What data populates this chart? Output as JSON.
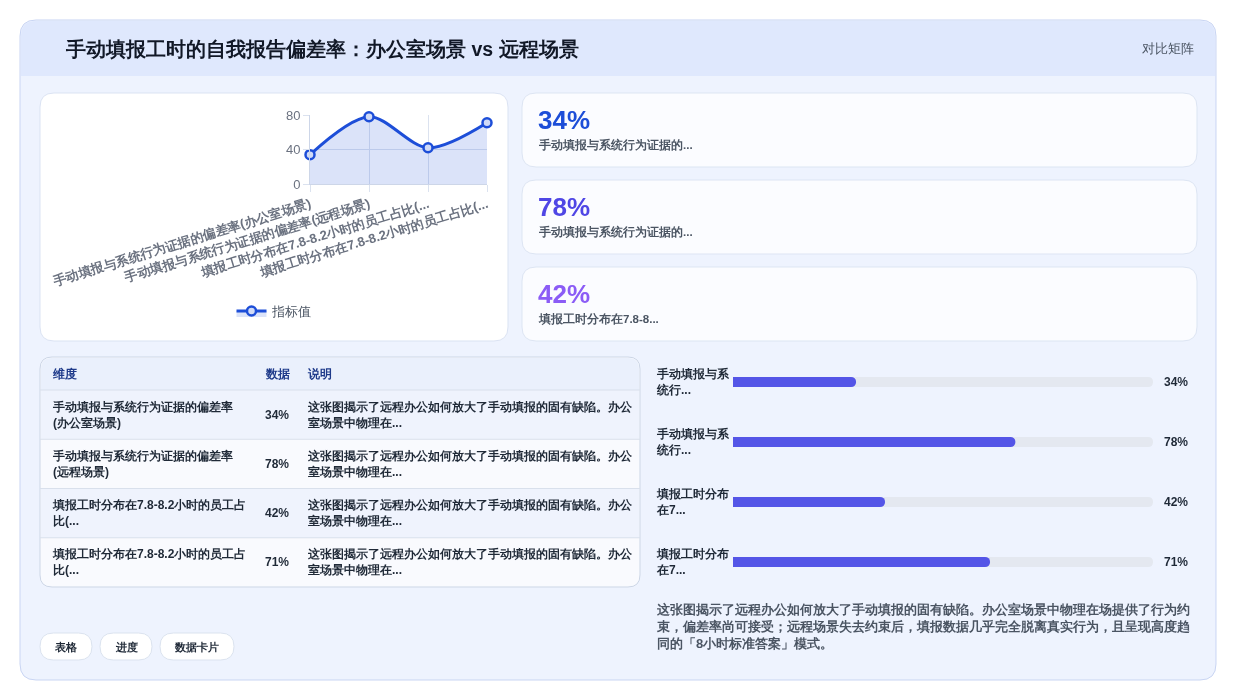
{
  "chart_data": [
    {
      "type": "other",
      "title": "手动填报工时的自我报告偏差率：办公室场景 vs 远程场景",
      "subtitle": "对比矩阵"
    },
    {
      "type": "area",
      "categories": [
        "手动填报与系统行为证据的偏差率(办公室场景)",
        "手动填报与系统行为证据的偏差率(远程场景)",
        "填报工时分布在7.8-8.2小时的员工占比(...",
        "填报工时分布在7.8-8.2小时的员工占比(..."
      ],
      "series": [
        {
          "name": "指标值",
          "color": "#1d4ed8",
          "values": [
            34,
            78,
            42,
            71
          ]
        }
      ],
      "ylim": [
        0,
        80
      ],
      "yticks": [
        0,
        40,
        80
      ],
      "grid": true,
      "legend": "bottom",
      "marker": "circle"
    },
    {
      "type": "other",
      "categories": [
        "手动填报与系统行为证据的...",
        "手动填报与系统行为证据的...",
        "填报工时分布在7.8-8..."
      ],
      "value_labels": [
        "34%",
        "78%",
        "42%"
      ]
    },
    {
      "type": "other",
      "ylabel": "维度",
      "categories": [
        "数据",
        "说明"
      ],
      "y_categories": [
        "手动填报与系统行为证据的偏差率(办公室场景)",
        "手动填报与系统行为证据的偏差率(远程场景)",
        "填报工时分布在7.8-8.2小时的员工占比(...",
        "填报工时分布在7.8-8.2小时的员工占比(..."
      ],
      "cell_labels": [
        [
          "34%",
          "这张图揭示了远程办公如何放大了手动填报的固有缺陷。办公室场景中物理在..."
        ],
        [
          "78%",
          "这张图揭示了远程办公如何放大了手动填报的固有缺陷。办公室场景中物理在..."
        ],
        [
          "42%",
          "这张图揭示了远程办公如何放大了手动填报的固有缺陷。办公室场景中物理在..."
        ],
        [
          "71%",
          "这张图揭示了远程办公如何放大了手动填报的固有缺陷。办公室场景中物理在..."
        ]
      ],
      "annotations": [
        "表格",
        "进度",
        "数据卡片"
      ]
    },
    {
      "type": "bar",
      "orientation": "horizontal",
      "categories": [
        "手动填报与系统行...",
        "手动填报与系统行...",
        "填报工时分布在7...",
        "填报工时分布在7..."
      ],
      "values": [
        34,
        78,
        42,
        71
      ],
      "value_labels": [
        "34%",
        "78%",
        "42%",
        "71%"
      ],
      "color": "#5455e7",
      "xlim": [
        0,
        116
      ],
      "tick_labels": "y",
      "annotations": [
        "这张图揭示了远程办公如何放大了手动填报的固有缺陷。办公室场景中物理在场提供了行为约束，偏差率尚可接受；远程场景失去约束后，填报数据几乎完全脱离真实行为，且呈现高度趋同的「8小时标准答案」模式。"
      ]
    }
  ]
}
